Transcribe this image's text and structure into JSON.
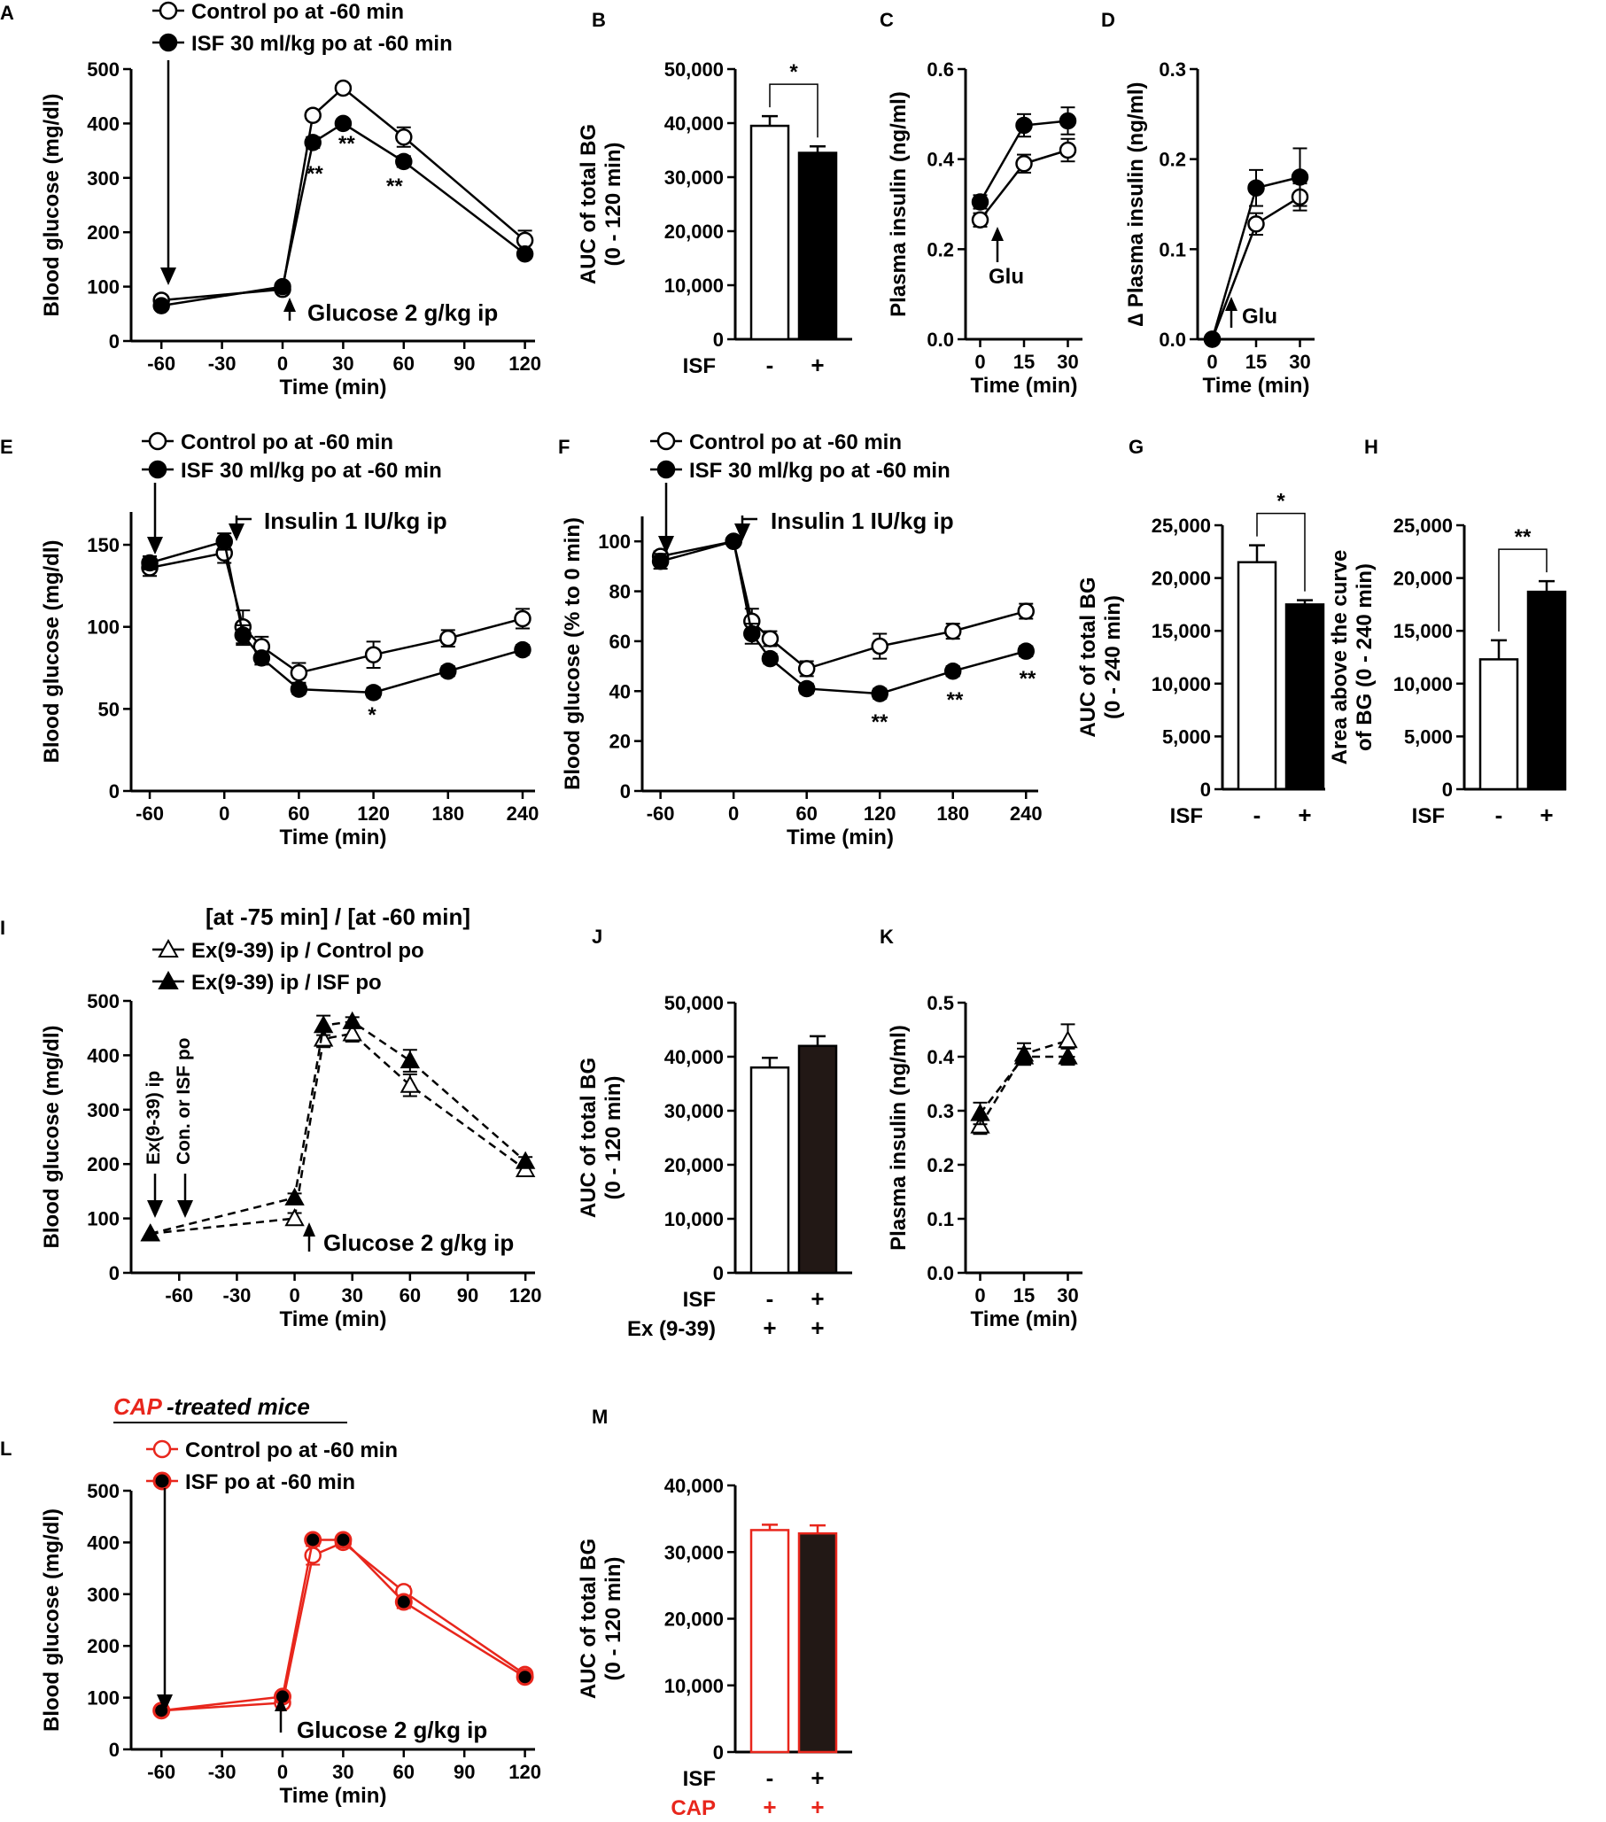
{
  "colors": {
    "black": "#000000",
    "red": "#e8261c",
    "white": "#ffffff",
    "bar_black": "#000000",
    "bar_dark": "#221815"
  },
  "chart_data": [
    {
      "letter": "A",
      "type": "line",
      "ylabel": "Blood glucose (mg/dl)",
      "xlabel": "Time (min)",
      "ylim": [
        0,
        500
      ],
      "yticks": [
        "0",
        "100",
        "200",
        "300",
        "400",
        "500"
      ],
      "xlim": [
        -75,
        125
      ],
      "xticks": [
        -60,
        -30,
        0,
        30,
        60,
        90,
        120
      ],
      "xtick_labels": [
        "-60",
        "-30",
        "0",
        "30",
        "60",
        "90",
        "120"
      ],
      "legend": [
        "Control po at -60 min",
        "ISF 30 ml/kg po at -60 min"
      ],
      "series": [
        {
          "name": "Control po at -60 min",
          "marker": "open",
          "x": [
            -60,
            0,
            15,
            30,
            60,
            120
          ],
          "y": [
            75,
            95,
            415,
            465,
            375,
            185
          ],
          "err": [
            0,
            8,
            8,
            6,
            18,
            18
          ]
        },
        {
          "name": "ISF 30 ml/kg po at -60 min",
          "marker": "filled",
          "x": [
            -60,
            0,
            15,
            30,
            60,
            120
          ],
          "y": [
            65,
            100,
            365,
            400,
            330,
            160
          ],
          "err": [
            0,
            6,
            10,
            8,
            10,
            8
          ]
        }
      ],
      "stars": [
        "**",
        "**",
        "**"
      ],
      "annotation": "Glucose 2 g/kg ip"
    },
    {
      "letter": "B",
      "type": "bar",
      "ylabel": "AUC of total BG",
      "ylabel2": "(0 - 120 min)",
      "ylim": [
        0,
        50000
      ],
      "yticks": [
        "0",
        "10,000",
        "20,000",
        "30,000",
        "40,000",
        "50,000"
      ],
      "row_labels": [
        "ISF"
      ],
      "rows": [
        [
          "-",
          "+"
        ]
      ],
      "values": [
        39500,
        34500
      ],
      "err": [
        1800,
        1200
      ],
      "sig": "*"
    },
    {
      "letter": "C",
      "type": "line",
      "ylabel": "Plasma insulin (ng/ml)",
      "xlabel": "Time (min)",
      "ylim": [
        0,
        0.6
      ],
      "yticks": [
        "0.0",
        "0.2",
        "0.4",
        "0.6"
      ],
      "xlim": [
        -5,
        35
      ],
      "xticks": [
        0,
        15,
        30
      ],
      "xtick_labels": [
        "0",
        "15",
        "30"
      ],
      "series": [
        {
          "name": "Control",
          "marker": "open",
          "x": [
            0,
            15,
            30
          ],
          "y": [
            0.265,
            0.39,
            0.42
          ],
          "err": [
            0.015,
            0.02,
            0.025
          ]
        },
        {
          "name": "ISF",
          "marker": "filled",
          "x": [
            0,
            15,
            30
          ],
          "y": [
            0.305,
            0.475,
            0.485
          ],
          "err": [
            0.015,
            0.025,
            0.03
          ]
        }
      ],
      "annotation": "Glu"
    },
    {
      "letter": "D",
      "type": "line",
      "ylabel": "∆ Plasma insulin (ng/ml)",
      "xlabel": "Time (min)",
      "ylim": [
        0,
        0.3
      ],
      "yticks": [
        "0.0",
        "0.1",
        "0.2",
        "0.3"
      ],
      "xlim": [
        -5,
        35
      ],
      "xticks": [
        0,
        15,
        30
      ],
      "xtick_labels": [
        "0",
        "15",
        "30"
      ],
      "series": [
        {
          "name": "Control",
          "marker": "open",
          "x": [
            0,
            15,
            30
          ],
          "y": [
            0.0,
            0.128,
            0.158
          ],
          "err": [
            0,
            0.012,
            0.015
          ]
        },
        {
          "name": "ISF",
          "marker": "filled",
          "x": [
            0,
            15,
            30
          ],
          "y": [
            0.0,
            0.168,
            0.18
          ],
          "err": [
            0,
            0.02,
            0.032
          ]
        }
      ],
      "annotation": "Glu"
    },
    {
      "letter": "E",
      "type": "line",
      "ylabel": "Blood glucose (mg/dl)",
      "xlabel": "Time (min)",
      "ylim": [
        0,
        170
      ],
      "yticks": [
        "0",
        "50",
        "100",
        "150"
      ],
      "ytick_values": [
        0,
        50,
        100,
        150
      ],
      "xlim": [
        -75,
        250
      ],
      "xticks": [
        -60,
        0,
        60,
        120,
        180,
        240
      ],
      "xtick_labels": [
        "-60",
        "0",
        "60",
        "120",
        "180",
        "240"
      ],
      "legend": [
        "Control po at -60 min",
        "ISF 30 ml/kg po at -60 min"
      ],
      "series": [
        {
          "name": "Control po at -60 min",
          "marker": "open",
          "x": [
            -60,
            0,
            15,
            30,
            60,
            120,
            180,
            240
          ],
          "y": [
            136,
            145,
            100,
            88,
            72,
            83,
            93,
            105
          ],
          "err": [
            5,
            6,
            10,
            6,
            6,
            8,
            5,
            6
          ]
        },
        {
          "name": "ISF 30 ml/kg po at -60 min",
          "marker": "filled",
          "x": [
            -60,
            0,
            15,
            30,
            60,
            120,
            180,
            240
          ],
          "y": [
            139,
            152,
            95,
            81,
            62,
            60,
            73,
            86
          ],
          "err": [
            4,
            5,
            6,
            4,
            3,
            3,
            3,
            3
          ]
        }
      ],
      "stars": [
        "*"
      ],
      "annotation": "Insulin 1 IU/kg ip"
    },
    {
      "letter": "F",
      "type": "line",
      "ylabel": "Blood glucose (% to 0 min)",
      "xlabel": "Time (min)",
      "ylim": [
        0,
        110
      ],
      "yticks": [
        "0",
        "20",
        "40",
        "60",
        "80",
        "100"
      ],
      "ytick_values": [
        0,
        20,
        40,
        60,
        80,
        100
      ],
      "xlim": [
        -75,
        250
      ],
      "xticks": [
        -60,
        0,
        60,
        120,
        180,
        240
      ],
      "xtick_labels": [
        "-60",
        "0",
        "60",
        "120",
        "180",
        "240"
      ],
      "legend": [
        "Control po at -60 min",
        "ISF 30 ml/kg po at -60 min"
      ],
      "series": [
        {
          "name": "Control po at -60 min",
          "marker": "open",
          "x": [
            -60,
            0,
            15,
            30,
            60,
            120,
            180,
            240
          ],
          "y": [
            94,
            100,
            68,
            61,
            49,
            58,
            64,
            72
          ],
          "err": [
            2,
            0,
            5,
            3,
            3,
            5,
            3,
            3
          ]
        },
        {
          "name": "ISF 30 ml/kg po at -60 min",
          "marker": "filled",
          "x": [
            -60,
            0,
            15,
            30,
            60,
            120,
            180,
            240
          ],
          "y": [
            92,
            100,
            63,
            53,
            41,
            39,
            48,
            56
          ],
          "err": [
            3,
            0,
            4,
            2,
            2,
            2,
            2,
            2
          ]
        }
      ],
      "stars": [
        "**",
        "**",
        "**"
      ],
      "annotation": "Insulin 1 IU/kg ip"
    },
    {
      "letter": "G",
      "type": "bar",
      "ylabel": "AUC of total BG",
      "ylabel2": "(0 - 240 min)",
      "ylim": [
        0,
        25000
      ],
      "yticks": [
        "0",
        "5,000",
        "10,000",
        "15,000",
        "20,000",
        "25,000"
      ],
      "row_labels": [
        "ISF"
      ],
      "rows": [
        [
          "-",
          "+"
        ]
      ],
      "values": [
        21500,
        17500
      ],
      "err": [
        1600,
        400
      ],
      "sig": "*"
    },
    {
      "letter": "H",
      "type": "bar",
      "ylabel": "Area above the curve",
      "ylabel2": "of BG (0 - 240 min)",
      "ylim": [
        0,
        25000
      ],
      "yticks": [
        "0",
        "5,000",
        "10,000",
        "15,000",
        "20,000",
        "25,000"
      ],
      "row_labels": [
        "ISF"
      ],
      "rows": [
        [
          "-",
          "+"
        ]
      ],
      "values": [
        12300,
        18700
      ],
      "err": [
        1800,
        1000
      ],
      "sig": "**"
    },
    {
      "letter": "I",
      "type": "line",
      "ylabel": "Blood glucose (mg/dl)",
      "xlabel": "Time (min)",
      "ylim": [
        0,
        500
      ],
      "yticks": [
        "0",
        "100",
        "200",
        "300",
        "400",
        "500"
      ],
      "xlim": [
        -85,
        125
      ],
      "xticks": [
        -60,
        -30,
        0,
        30,
        60,
        90,
        120
      ],
      "xtick_labels": [
        "-60",
        "-30",
        "0",
        "30",
        "60",
        "90",
        "120"
      ],
      "legend_header": "[at -75 min] / [at -60 min]",
      "legend": [
        "Ex(9-39) ip  / Control po",
        "Ex(9-39) ip  / ISF po"
      ],
      "series": [
        {
          "name": "Ex(9-39) ip  / Control po",
          "marker": "open-tri",
          "x": [
            -75,
            0,
            15,
            30,
            60,
            120
          ],
          "y": [
            72,
            100,
            430,
            440,
            345,
            190
          ],
          "err": [
            0,
            10,
            15,
            15,
            20,
            8
          ]
        },
        {
          "name": "Ex(9-39) ip  / ISF po",
          "marker": "filled-tri",
          "x": [
            -75,
            0,
            15,
            30,
            60,
            120
          ],
          "y": [
            72,
            138,
            455,
            462,
            390,
            205
          ],
          "err": [
            0,
            8,
            18,
            8,
            20,
            8
          ]
        }
      ],
      "vlabels": [
        "Ex(9-39) ip",
        "Con. or ISF po"
      ],
      "annotation": "Glucose 2 g/kg ip"
    },
    {
      "letter": "J",
      "type": "bar",
      "ylabel": "AUC of total BG",
      "ylabel2": "(0 - 120 min)",
      "ylim": [
        0,
        50000
      ],
      "yticks": [
        "0",
        "10,000",
        "20,000",
        "30,000",
        "40,000",
        "50,000"
      ],
      "row_labels": [
        "ISF",
        "Ex (9-39)"
      ],
      "rows": [
        [
          "-",
          "+"
        ],
        [
          "+",
          "+"
        ]
      ],
      "values": [
        38000,
        42000
      ],
      "err": [
        1800,
        1800
      ]
    },
    {
      "letter": "K",
      "type": "line",
      "ylabel": "Plasma insulin (ng/ml)",
      "xlabel": "Time (min)",
      "ylim": [
        0,
        0.5
      ],
      "yticks": [
        "0.0",
        "0.1",
        "0.2",
        "0.3",
        "0.4",
        "0.5"
      ],
      "xlim": [
        -5,
        35
      ],
      "xticks": [
        0,
        15,
        30
      ],
      "xtick_labels": [
        "0",
        "15",
        "30"
      ],
      "series": [
        {
          "name": "Control",
          "marker": "open-tri",
          "x": [
            0,
            15,
            30
          ],
          "y": [
            0.272,
            0.405,
            0.43
          ],
          "err": [
            0.015,
            0.02,
            0.03
          ]
        },
        {
          "name": "ISF",
          "marker": "filled-tri",
          "x": [
            0,
            15,
            30
          ],
          "y": [
            0.295,
            0.4,
            0.4
          ],
          "err": [
            0.02,
            0.015,
            0.015
          ]
        }
      ]
    },
    {
      "letter": "L",
      "type": "line",
      "title_red": "CAP",
      "title_rest": "-treated mice",
      "ylabel": "Blood glucose (mg/dl)",
      "xlabel": "Time (min)",
      "ylim": [
        0,
        500
      ],
      "yticks": [
        "0",
        "100",
        "200",
        "300",
        "400",
        "500"
      ],
      "xlim": [
        -75,
        125
      ],
      "xticks": [
        -60,
        -30,
        0,
        30,
        60,
        90,
        120
      ],
      "xtick_labels": [
        "-60",
        "-30",
        "0",
        "30",
        "60",
        "90",
        "120"
      ],
      "legend": [
        "Control po at -60 min",
        "ISF po at -60 min"
      ],
      "series": [
        {
          "name": "Control po at -60 min",
          "marker": "red-open",
          "x": [
            -60,
            0,
            15,
            30,
            60,
            120
          ],
          "y": [
            75,
            90,
            375,
            400,
            305,
            145
          ],
          "err": [
            0,
            6,
            18,
            10,
            10,
            6
          ]
        },
        {
          "name": "ISF po at -60 min",
          "marker": "red-filled",
          "x": [
            -60,
            0,
            15,
            30,
            60,
            120
          ],
          "y": [
            75,
            102,
            405,
            405,
            285,
            140
          ],
          "err": [
            0,
            6,
            8,
            8,
            12,
            6
          ]
        }
      ],
      "annotation": "Glucose 2 g/kg ip"
    },
    {
      "letter": "M",
      "type": "bar",
      "ylabel": "AUC of total BG",
      "ylabel2": "(0 - 120 min)",
      "ylim": [
        0,
        40000
      ],
      "yticks": [
        "0",
        "10,000",
        "20,000",
        "30,000",
        "40,000"
      ],
      "row_labels": [
        "ISF",
        "CAP"
      ],
      "rows": [
        [
          "-",
          "+"
        ],
        [
          "+",
          "+"
        ]
      ],
      "values": [
        33300,
        32800
      ],
      "err": [
        800,
        1200
      ]
    }
  ]
}
